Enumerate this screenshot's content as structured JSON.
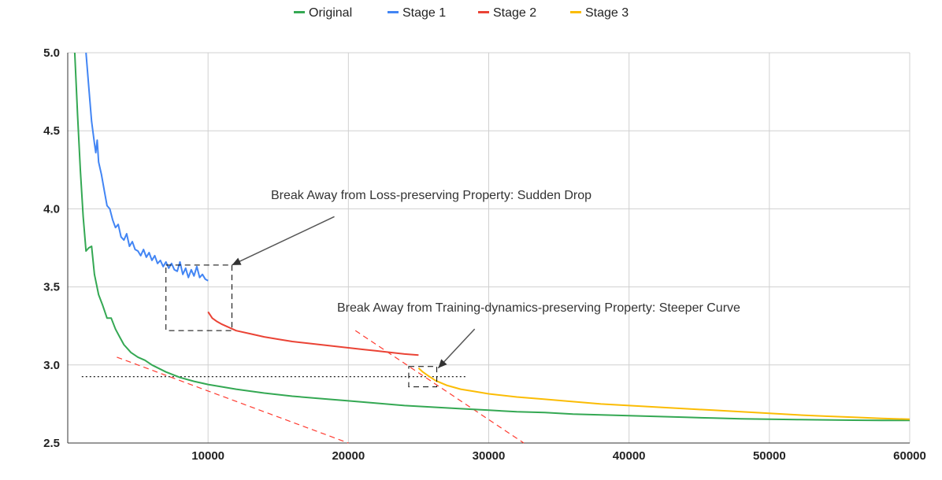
{
  "chart_data": {
    "type": "line",
    "title": "",
    "xlabel": "",
    "ylabel": "",
    "xlim": [
      0,
      60000
    ],
    "ylim": [
      2.5,
      5.0
    ],
    "x_ticks": [
      10000,
      20000,
      30000,
      40000,
      50000,
      60000
    ],
    "y_ticks": [
      2.5,
      3.0,
      3.5,
      4.0,
      4.5,
      5.0
    ],
    "grid": true,
    "legend_position": "top",
    "series": [
      {
        "name": "Original",
        "color": "#34a853",
        "x": [
          500,
          700,
          900,
          1100,
          1300,
          1500,
          1700,
          1900,
          2200,
          2500,
          2800,
          3100,
          3400,
          3700,
          4000,
          4500,
          5000,
          5500,
          6000,
          7000,
          8000,
          9000,
          10000,
          12000,
          14000,
          16000,
          18000,
          20000,
          22000,
          24000,
          26000,
          28000,
          30000,
          32000,
          34000,
          36000,
          38000,
          40000,
          42000,
          44000,
          46000,
          48000,
          50000,
          52000,
          54000,
          56000,
          58000,
          60000
        ],
        "y": [
          5.0,
          4.6,
          4.25,
          3.95,
          3.73,
          3.75,
          3.76,
          3.58,
          3.45,
          3.38,
          3.3,
          3.3,
          3.23,
          3.18,
          3.13,
          3.08,
          3.05,
          3.03,
          3.0,
          2.955,
          2.92,
          2.895,
          2.875,
          2.845,
          2.82,
          2.8,
          2.785,
          2.77,
          2.755,
          2.74,
          2.73,
          2.72,
          2.71,
          2.7,
          2.695,
          2.685,
          2.68,
          2.675,
          2.67,
          2.665,
          2.66,
          2.655,
          2.652,
          2.65,
          2.648,
          2.646,
          2.645,
          2.645
        ]
      },
      {
        "name": "Stage 1",
        "color": "#4285f4",
        "x": [
          1300,
          1500,
          1700,
          1900,
          2000,
          2100,
          2200,
          2400,
          2600,
          2800,
          3000,
          3200,
          3400,
          3600,
          3800,
          4000,
          4200,
          4400,
          4600,
          4800,
          5000,
          5200,
          5400,
          5600,
          5800,
          6000,
          6200,
          6400,
          6600,
          6800,
          7000,
          7200,
          7400,
          7600,
          7800,
          8000,
          8200,
          8400,
          8600,
          8800,
          9000,
          9200,
          9400,
          9600,
          9800,
          10000
        ],
        "y": [
          5.0,
          4.78,
          4.56,
          4.42,
          4.36,
          4.44,
          4.3,
          4.22,
          4.12,
          4.02,
          4.0,
          3.93,
          3.88,
          3.9,
          3.82,
          3.8,
          3.84,
          3.76,
          3.79,
          3.74,
          3.73,
          3.7,
          3.74,
          3.69,
          3.72,
          3.67,
          3.7,
          3.65,
          3.67,
          3.63,
          3.66,
          3.62,
          3.65,
          3.61,
          3.6,
          3.66,
          3.58,
          3.62,
          3.56,
          3.61,
          3.57,
          3.63,
          3.56,
          3.58,
          3.55,
          3.54
        ]
      },
      {
        "name": "Stage 2",
        "color": "#ea4335",
        "x": [
          10000,
          10300,
          10600,
          11000,
          11500,
          12000,
          13000,
          14000,
          15000,
          16000,
          17000,
          18000,
          19000,
          20000,
          21000,
          22000,
          23000,
          24000,
          25000
        ],
        "y": [
          3.34,
          3.3,
          3.28,
          3.26,
          3.24,
          3.22,
          3.2,
          3.18,
          3.165,
          3.15,
          3.14,
          3.13,
          3.12,
          3.11,
          3.1,
          3.09,
          3.08,
          3.07,
          3.063
        ]
      },
      {
        "name": "Stage 3",
        "color": "#fbbc04",
        "x": [
          25000,
          25300,
          25700,
          26200,
          27000,
          28000,
          29000,
          30000,
          32000,
          34000,
          36000,
          38000,
          40000,
          42000,
          44000,
          46000,
          48000,
          50000,
          52000,
          54000,
          56000,
          58000,
          60000
        ],
        "y": [
          2.98,
          2.955,
          2.93,
          2.9,
          2.87,
          2.845,
          2.83,
          2.815,
          2.795,
          2.78,
          2.765,
          2.75,
          2.74,
          2.73,
          2.72,
          2.71,
          2.7,
          2.69,
          2.68,
          2.672,
          2.665,
          2.658,
          2.652
        ]
      }
    ],
    "annotations": [
      {
        "text": "Break Away from Loss-preserving Property: Sudden Drop"
      },
      {
        "text": "Break Away from Training-dynamics-preserving Property: Steeper Curve"
      }
    ],
    "reference_lines": [
      {
        "style": "dotted",
        "color": "#000000",
        "x": [
          1000,
          28500
        ],
        "y": [
          2.925,
          2.925
        ]
      },
      {
        "style": "dashed",
        "color": "#ff3b30",
        "x": [
          3500,
          20000
        ],
        "y": [
          3.05,
          2.5
        ]
      },
      {
        "style": "dashed",
        "color": "#ff3b30",
        "x": [
          20500,
          32500
        ],
        "y": [
          3.22,
          2.5
        ]
      }
    ],
    "highlight_boxes": [
      {
        "x": [
          7000,
          11700
        ],
        "y": [
          3.22,
          3.64
        ]
      },
      {
        "x": [
          24300,
          26300
        ],
        "y": [
          2.86,
          2.99
        ]
      }
    ],
    "arrows": [
      {
        "from": [
          19000,
          3.95
        ],
        "to": [
          11700,
          3.64
        ]
      },
      {
        "from": [
          29000,
          3.23
        ],
        "to": [
          26400,
          2.98
        ]
      }
    ]
  }
}
